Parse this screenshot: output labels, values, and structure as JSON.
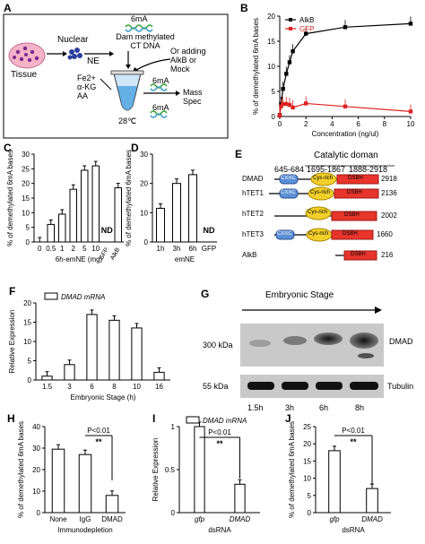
{
  "panels": {
    "A": "A",
    "B": "B",
    "C": "C",
    "D": "D",
    "E": "E",
    "F": "F",
    "G": "G",
    "H": "H",
    "I": "I",
    "J": "J"
  },
  "panel_a": {
    "tissue": "Tissue",
    "nuclear": "Nuclear",
    "ne": "NE",
    "label_6ma_top": "6mA",
    "dam_line1": "Dam methylated",
    "dam_line2": "CT DNA",
    "or_line1": "Or adding",
    "or_line2": "AlkB or",
    "or_line3": "Mock",
    "reagent1": "Fe2+",
    "reagent2": "α-KG",
    "reagent3": "AA",
    "temp": "28℃",
    "label_6ma_mid": "6mA",
    "label_6ma_bot": "6mA",
    "mass1": "Mass",
    "mass2": "Spec"
  },
  "panel_e": {
    "catalytic_header": "Catalytic doman",
    "range1": "645-684",
    "range2": "1695-1867",
    "range3": "1888-2918",
    "cxxc": "CXXC",
    "cys": "Cys-rich",
    "dsbh": "DSBH",
    "proteins": [
      {
        "name": "DMAD",
        "length": "2918"
      },
      {
        "name": "hTET1",
        "length": "2136"
      },
      {
        "name": "hTET2",
        "length": "2002"
      },
      {
        "name": "hTET3",
        "length": "1660"
      },
      {
        "name": "AlkB",
        "length": "216"
      }
    ]
  },
  "panel_g": {
    "header": "Embryonic Stage",
    "band1": "300 kDa",
    "band2": "55 kDa",
    "protein1": "DMAD",
    "protein2": "Tubulin",
    "lanes": [
      "1.5h",
      "3h",
      "6h",
      "8h"
    ]
  },
  "chart_data": [
    {
      "panel": "B",
      "type": "line",
      "xlabel": "Concentration (ng/ul)",
      "ylabel": "% of demethylated 6mA bases",
      "xlim": [
        0,
        10
      ],
      "ylim": [
        0,
        20
      ],
      "xticks": [
        "0",
        "2",
        "4",
        "6",
        "8",
        "10"
      ],
      "yticks": [
        "0",
        "5",
        "10",
        "15",
        "20"
      ],
      "legend_position": "top-left",
      "series": [
        {
          "name": "AlkB",
          "color": "#000000",
          "x": [
            0,
            0.1,
            0.25,
            0.5,
            0.75,
            1,
            2,
            5,
            10
          ],
          "y": [
            0.3,
            2.5,
            5.5,
            8.5,
            10.8,
            13,
            16.5,
            17.8,
            18.5
          ]
        },
        {
          "name": "GFP",
          "color": "#dd2222",
          "x": [
            0,
            0.1,
            0.25,
            0.5,
            0.75,
            1,
            2,
            5,
            10
          ],
          "y": [
            0.2,
            2.0,
            2.5,
            2.5,
            2.3,
            1.8,
            2.6,
            2.0,
            1.0
          ]
        }
      ]
    },
    {
      "panel": "C",
      "type": "bar",
      "xlabel": "6h-emNE (mg)",
      "ylabel": "% of demethylated 6mA bases",
      "categories": [
        "0",
        "0.5",
        "1",
        "2",
        "5",
        "10",
        "GFP",
        "AlkB"
      ],
      "values": [
        0,
        6,
        9.5,
        18,
        24.5,
        26,
        null,
        18.5
      ],
      "nd_label": "ND",
      "ylim": [
        0,
        30
      ],
      "yticks": [
        "0",
        "5",
        "10",
        "15",
        "20",
        "25",
        "30"
      ]
    },
    {
      "panel": "D",
      "type": "bar",
      "xlabel": "emNE",
      "ylabel": "% of demethylated 6mA bases",
      "categories": [
        "1h",
        "3h",
        "6h",
        "GFP"
      ],
      "values": [
        11.5,
        20,
        23,
        null
      ],
      "nd_label": "ND",
      "ylim": [
        0,
        30
      ],
      "yticks": [
        "0",
        "10",
        "20",
        "30"
      ]
    },
    {
      "panel": "F",
      "type": "bar",
      "xlabel": "Embryonic Stage (h)",
      "ylabel": "Relative Expression",
      "legend": "DMAD mRNA",
      "categories": [
        "1.5",
        "3",
        "6",
        "8",
        "10",
        "16"
      ],
      "values": [
        1,
        4,
        17,
        15.5,
        13.5,
        2
      ],
      "ylim": [
        0,
        20
      ],
      "yticks": [
        "0",
        "5",
        "10",
        "15",
        "20"
      ]
    },
    {
      "panel": "H",
      "type": "bar",
      "xlabel": "Immunodepletion",
      "ylabel": "% of demethylated 6mA bases",
      "categories": [
        "None",
        "IgG",
        "DMAD"
      ],
      "values": [
        29.5,
        27,
        8
      ],
      "ylim": [
        0,
        40
      ],
      "yticks": [
        "0",
        "10",
        "20",
        "30",
        "40"
      ],
      "annotation": "P<0.01",
      "stars": "**"
    },
    {
      "panel": "I",
      "type": "bar",
      "xlabel": "dsRNA",
      "ylabel": "Relative Expression",
      "legend": "DMAD mRNA",
      "categories": [
        "gfp",
        "DMAD"
      ],
      "values": [
        1.0,
        0.33
      ],
      "ylim": [
        0,
        1
      ],
      "yticks": [
        "0",
        "0.5",
        "1"
      ],
      "annotation": "P<0.01",
      "stars": "**"
    },
    {
      "panel": "J",
      "type": "bar",
      "xlabel": "dsRNA",
      "ylabel": "% of demethylated 6mA bases",
      "categories": [
        "gfp",
        "DMAD"
      ],
      "values": [
        18,
        7
      ],
      "ylim": [
        0,
        25
      ],
      "yticks": [
        "0",
        "5",
        "10",
        "15",
        "20",
        "25"
      ],
      "annotation": "P<0.01",
      "stars": "**"
    }
  ]
}
